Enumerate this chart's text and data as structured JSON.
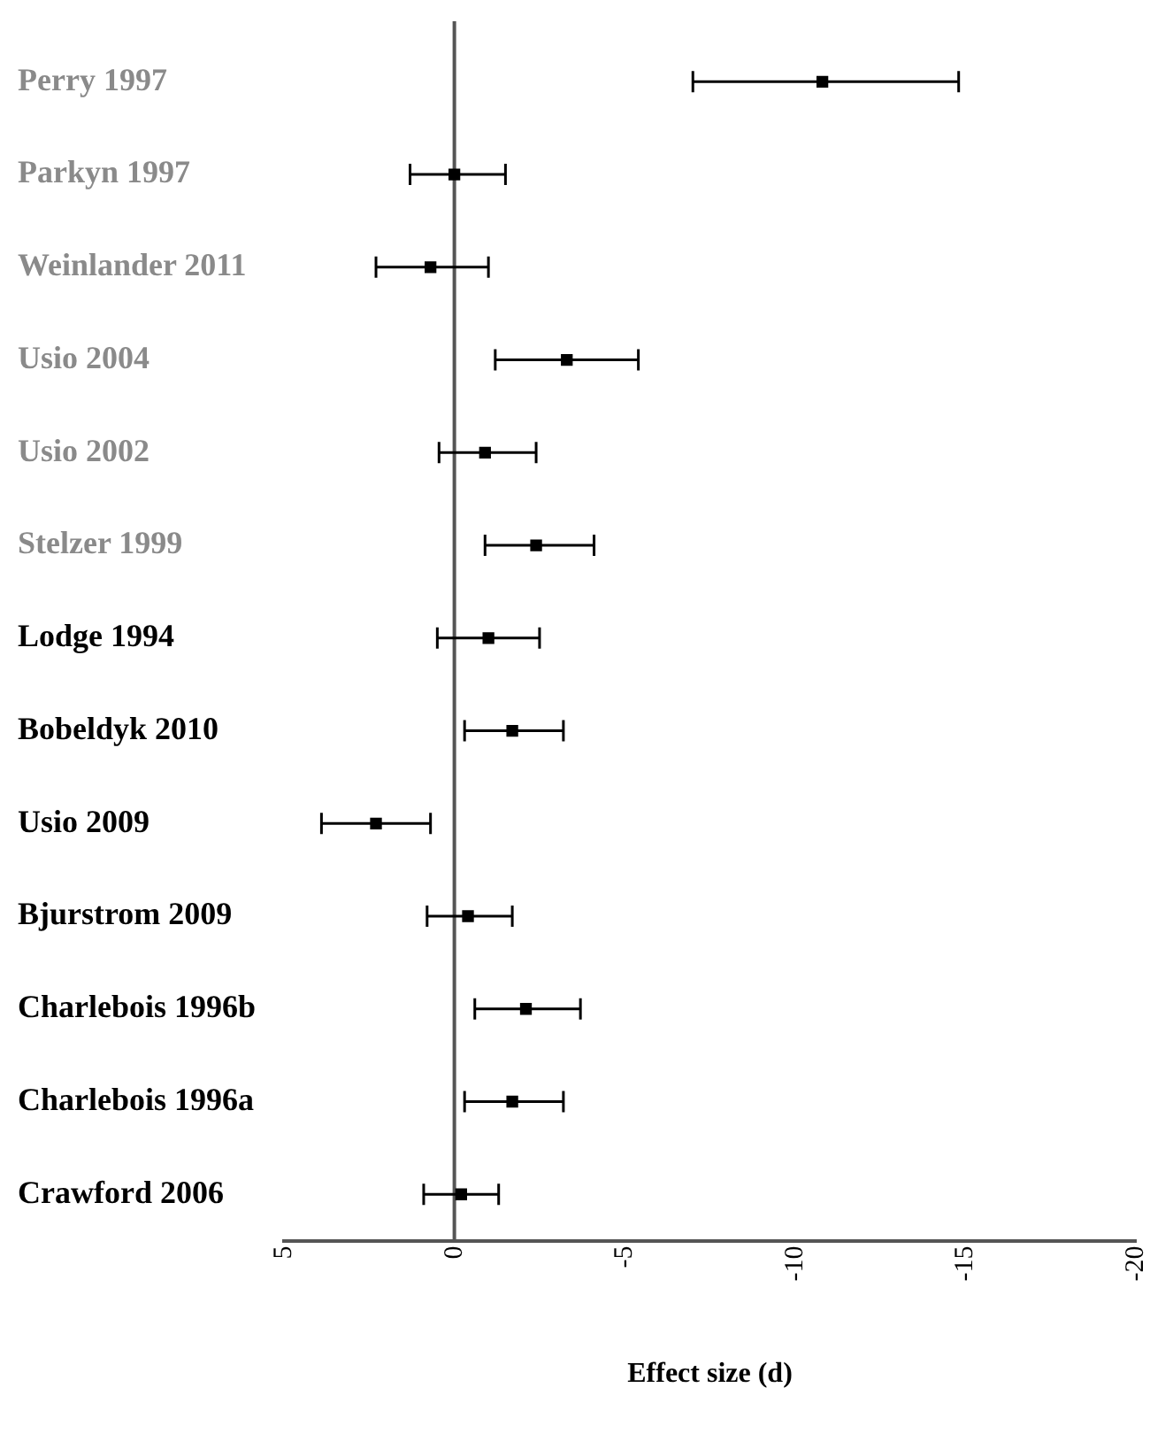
{
  "chart_data": {
    "type": "scatter",
    "xlabel": "Effect size (d)",
    "categories": [
      "Perry 1997",
      "Parkyn 1997",
      "Weinlander 2011",
      "Usio 2004",
      "Usio 2002",
      "Stelzer 1999",
      "Lodge 1994",
      "Bobeldyk 2010",
      "Usio 2009",
      "Bjurstrom 2009",
      "Charlebois 1996b",
      "Charlebois 1996a",
      "Crawford 2006"
    ],
    "values": [
      -10.8,
      0,
      0.7,
      -3.3,
      -0.9,
      -2.4,
      -1.0,
      -1.7,
      2.3,
      -0.4,
      -2.1,
      -1.7,
      -0.2
    ],
    "errors": [
      [
        -14.8,
        -7.0
      ],
      [
        -1.5,
        1.3
      ],
      [
        -1.0,
        2.3
      ],
      [
        -5.4,
        -1.2
      ],
      [
        -2.4,
        0.45
      ],
      [
        -4.1,
        -0.9
      ],
      [
        -2.5,
        0.5
      ],
      [
        -3.2,
        -0.3
      ],
      [
        0.7,
        3.9
      ],
      [
        -1.7,
        0.8
      ],
      [
        -3.7,
        -0.6
      ],
      [
        -3.2,
        -0.3
      ],
      [
        -1.3,
        0.9
      ]
    ],
    "color": "#000000",
    "marker": "square",
    "orientation": "horizontal",
    "xlim": [
      5,
      -20
    ],
    "xticks": [
      5,
      0,
      -5,
      -10,
      -15,
      -20
    ],
    "ref_lines": [
      {
        "axis": "x",
        "value": 0,
        "color": "#555555"
      }
    ],
    "grid": false,
    "legend": false
  }
}
